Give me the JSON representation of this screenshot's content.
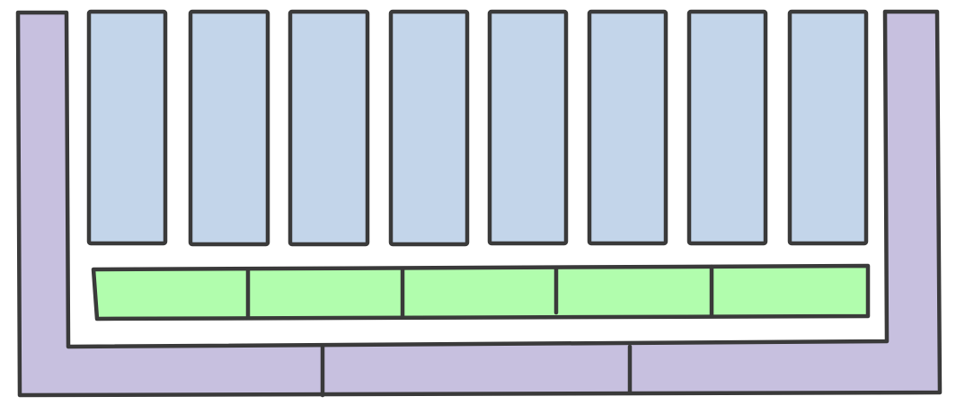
{
  "diagram": {
    "colors": {
      "outline": "#3a3a3a",
      "column_fill": "#c3d5ea",
      "band_fill": "#b1fdad",
      "frame_fill": "#c7c0df",
      "background": "#ffffff"
    },
    "columns": {
      "count": 8
    },
    "band": {
      "segment_count": 5
    },
    "frame": {
      "base_segment_count": 3
    }
  }
}
